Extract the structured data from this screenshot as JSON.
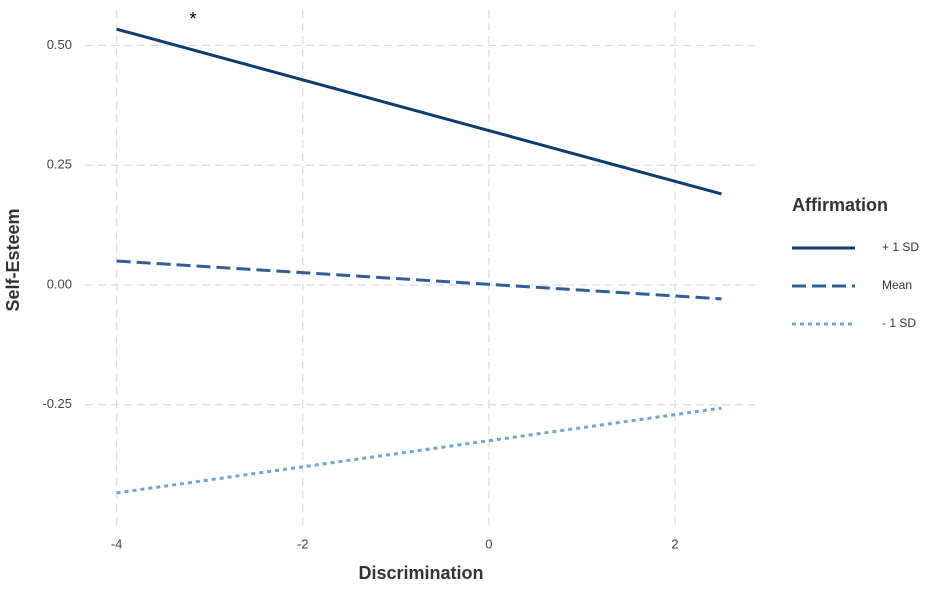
{
  "chart_data": {
    "type": "line",
    "x_label": "Discrimination",
    "y_label": "Self-Esteem",
    "x": [
      -4,
      2.5
    ],
    "series": [
      {
        "name": "+ 1 SD",
        "color": "#0d3d73",
        "linestyle": "solid",
        "values": [
          0.534,
          0.19
        ]
      },
      {
        "name": "Mean",
        "color": "#2f5f98",
        "linestyle": "dashed",
        "values": [
          0.05,
          -0.029
        ]
      },
      {
        "name": "- 1 SD",
        "color": "#6fa4d4",
        "linestyle": "dotted",
        "values": [
          -0.434,
          -0.257
        ]
      }
    ],
    "legend_title": "Affirmation",
    "annotation": "*",
    "xlim": [
      -4.34,
      2.86
    ],
    "xticks": [
      -4,
      -2,
      0,
      2
    ],
    "ylim": [
      -0.501,
      0.574
    ],
    "yticks": [
      {
        "value": -0.25,
        "label": "-0.25"
      },
      {
        "value": 0,
        "label": "0.00"
      },
      0.25,
      {
        "value": 0.5,
        "label": "0.50"
      }
    ],
    "grid": true,
    "legend": "right"
  }
}
